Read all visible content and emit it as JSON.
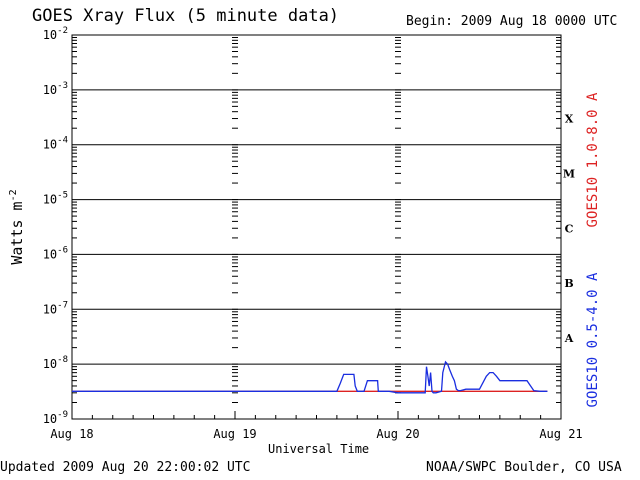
{
  "header": {
    "title": "GOES Xray Flux (5 minute data)",
    "begin": "Begin:  2009 Aug 18 0000 UTC"
  },
  "footer": {
    "updated": "Updated 2009 Aug 20 22:00:02 UTC",
    "credit": "NOAA/SWPC Boulder, CO USA"
  },
  "colors": {
    "long_channel": "#dd2222",
    "short_channel": "#1a2ee0",
    "axes": "#000000"
  },
  "chart_data": {
    "type": "line",
    "title": "GOES Xray Flux (5 minute data)",
    "xlabel": "Universal Time",
    "ylabel": "Watts m-2",
    "yscale": "log",
    "ylim": [
      1e-09,
      0.01
    ],
    "xlim_hours": [
      0,
      72
    ],
    "x_ticks": [
      "Aug 18",
      "Aug 19",
      "Aug 20",
      "Aug 21"
    ],
    "y_ticks": [
      {
        "base": "10",
        "exp": "-9",
        "value": 1e-09
      },
      {
        "base": "10",
        "exp": "-8",
        "value": 1e-08
      },
      {
        "base": "10",
        "exp": "-7",
        "value": 1e-07
      },
      {
        "base": "10",
        "exp": "-6",
        "value": 1e-06
      },
      {
        "base": "10",
        "exp": "-5",
        "value": 1e-05
      },
      {
        "base": "10",
        "exp": "-4",
        "value": 0.0001
      },
      {
        "base": "10",
        "exp": "-3",
        "value": 0.001
      },
      {
        "base": "10",
        "exp": "-2",
        "value": 0.01
      }
    ],
    "flare_classes": [
      {
        "label": "X",
        "value": 0.0003
      },
      {
        "label": "M",
        "value": 3e-05
      },
      {
        "label": "C",
        "value": 3e-06
      },
      {
        "label": "B",
        "value": 3e-07
      },
      {
        "label": "A",
        "value": 3e-08
      }
    ],
    "grid": "horizontal at decades",
    "legend_placement": "right, vertical",
    "series": [
      {
        "name": "GOES10 1.0-8.0 A",
        "color": "#dd2222",
        "x": [
          0,
          12,
          24,
          36,
          48,
          60,
          70
        ],
        "y": [
          3.2e-09,
          3.2e-09,
          3.2e-09,
          3.2e-09,
          3.2e-09,
          3.2e-09,
          3.2e-09
        ]
      },
      {
        "name": "GOES10 0.5-4.0 A",
        "color": "#1a2ee0",
        "x": [
          0,
          39,
          39.5,
          40,
          41.5,
          41.7,
          42,
          43,
          43.5,
          43.7,
          45,
          45.1,
          46.5,
          46.7,
          48,
          52,
          52.2,
          52.4,
          52.6,
          52.8,
          53,
          53.2,
          53.6,
          54.4,
          54.6,
          55,
          55.3,
          55.6,
          56,
          56.3,
          56.6,
          56.9,
          57.2,
          58,
          60,
          61,
          61.5,
          62,
          62.5,
          63,
          63.5,
          64,
          65,
          67,
          68,
          69,
          70
        ],
        "y": [
          3.2e-09,
          3.2e-09,
          4.5e-09,
          6.5e-09,
          6.5e-09,
          4e-09,
          3.2e-09,
          3.2e-09,
          5e-09,
          5e-09,
          5e-09,
          3.2e-09,
          3.2e-09,
          3.2e-09,
          3e-09,
          3e-09,
          9e-09,
          6e-09,
          4e-09,
          7e-09,
          3.2e-09,
          3e-09,
          3e-09,
          3.2e-09,
          7e-09,
          1.1e-08,
          1e-08,
          8e-09,
          6e-09,
          5e-09,
          3.5e-09,
          3.3e-09,
          3.3e-09,
          3.5e-09,
          3.5e-09,
          6e-09,
          7e-09,
          7e-09,
          6e-09,
          5e-09,
          5e-09,
          5e-09,
          5e-09,
          5e-09,
          3.3e-09,
          3.2e-09,
          3.2e-09
        ]
      }
    ]
  }
}
